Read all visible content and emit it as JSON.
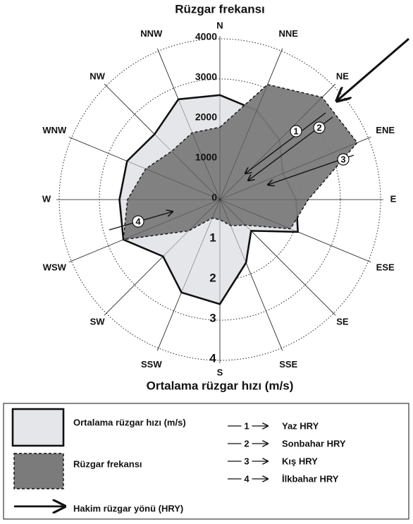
{
  "chart_data": {
    "type": "radar",
    "title": "Rüzgar frekansı",
    "r2_label": "Ortalama rüzgar hızı (m/s)",
    "categories": [
      "N",
      "NNE",
      "NE",
      "ENE",
      "E",
      "ESE",
      "SE",
      "SSE",
      "S",
      "SSW",
      "SW",
      "WSW",
      "W",
      "WNW",
      "NW",
      "NNW"
    ],
    "rlim": [
      0,
      4000
    ],
    "rticks": [
      0,
      1000,
      2000,
      3000,
      4000
    ],
    "r2lim": [
      0,
      4
    ],
    "r2ticks": [
      1,
      2,
      3,
      4
    ],
    "grid": true,
    "series": [
      {
        "name": "Ortalama rüzgar hızı (m/s)",
        "color": "#e4e6ea",
        "axis": "y2",
        "values": [
          2.6,
          2.4,
          2.1,
          1.7,
          1.9,
          2.1,
          1.1,
          1.7,
          2.6,
          2.5,
          2.0,
          2.6,
          2.5,
          2.5,
          2.3,
          2.7
        ]
      },
      {
        "name": "Rüzgar frekansı",
        "color": "#7b7b7b",
        "values": [
          1800,
          3100,
          3600,
          3700,
          2200,
          1900,
          900,
          700,
          500,
          500,
          1100,
          2600,
          2300,
          2000,
          1700,
          1800
        ]
      }
    ],
    "dominant_label": "Hakim rüzgar yönü (HRY)",
    "arrows": [
      {
        "label": "1",
        "name": "Yaz HRY"
      },
      {
        "label": "2",
        "name": "Sonbahar HRY"
      },
      {
        "label": "3",
        "name": "Kış HRY"
      },
      {
        "label": "4",
        "name": "İlkbahar HRY"
      }
    ]
  }
}
